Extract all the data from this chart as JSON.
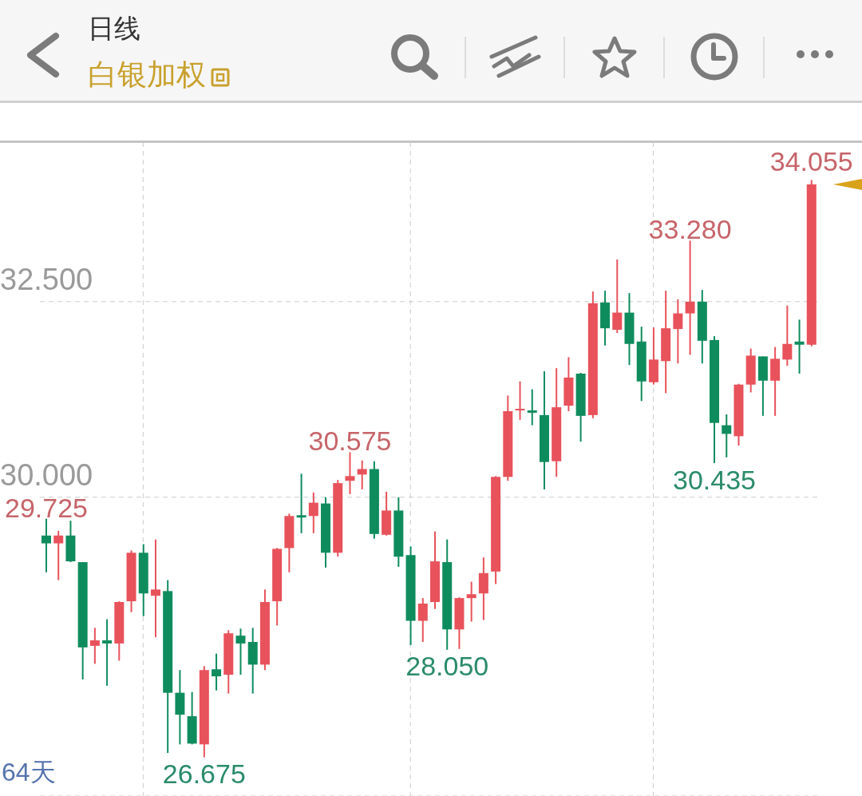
{
  "chart_data": {
    "type": "candlestick",
    "title": "白银加权",
    "subtitle": "日线",
    "categories": [
      null,
      null,
      null,
      null,
      null,
      null,
      null,
      null,
      null,
      null,
      null,
      null,
      null,
      null,
      null,
      null,
      null,
      null,
      null,
      null,
      null,
      null,
      null,
      null,
      null,
      null,
      null,
      null,
      null,
      null,
      null,
      null,
      null,
      null,
      null,
      null,
      null,
      null,
      null,
      null,
      null,
      null,
      null,
      null,
      null,
      null,
      null,
      null,
      null,
      null,
      null,
      null,
      null,
      null,
      null,
      null,
      null,
      null,
      null,
      null,
      null,
      null,
      null,
      null
    ],
    "ohlc": [
      [
        29.51,
        29.725,
        29.04,
        29.41
      ],
      [
        29.41,
        29.57,
        28.94,
        29.51
      ],
      [
        29.51,
        29.7,
        29.17,
        29.18
      ],
      [
        29.17,
        29.17,
        27.67,
        28.08
      ],
      [
        28.1,
        28.33,
        27.87,
        28.17
      ],
      [
        28.17,
        28.44,
        27.59,
        28.13
      ],
      [
        28.13,
        28.67,
        27.91,
        28.66
      ],
      [
        28.67,
        29.32,
        28.53,
        29.29
      ],
      [
        29.29,
        29.4,
        28.48,
        28.77
      ],
      [
        28.74,
        29.46,
        28.21,
        28.82
      ],
      [
        28.8,
        28.94,
        26.73,
        27.5
      ],
      [
        27.5,
        27.79,
        26.84,
        27.22
      ],
      [
        27.2,
        27.51,
        26.84,
        26.85
      ],
      [
        26.84,
        27.84,
        26.675,
        27.79
      ],
      [
        27.8,
        28.0,
        27.53,
        27.71
      ],
      [
        27.73,
        28.3,
        27.49,
        28.26
      ],
      [
        28.23,
        28.32,
        27.73,
        28.13
      ],
      [
        28.15,
        28.33,
        27.49,
        27.86
      ],
      [
        27.86,
        28.82,
        27.79,
        28.66
      ],
      [
        28.67,
        29.35,
        28.36,
        29.34
      ],
      [
        29.35,
        29.79,
        29.04,
        29.76
      ],
      [
        29.77,
        30.3,
        29.54,
        29.74
      ],
      [
        29.76,
        30.06,
        29.54,
        29.93
      ],
      [
        29.92,
        30.0,
        29.1,
        29.29
      ],
      [
        29.29,
        30.22,
        29.24,
        30.18
      ],
      [
        30.21,
        30.575,
        30.04,
        30.27
      ],
      [
        30.29,
        30.47,
        30.1,
        30.36
      ],
      [
        30.36,
        30.46,
        29.47,
        29.53
      ],
      [
        29.52,
        30.07,
        29.51,
        29.83
      ],
      [
        29.83,
        30.0,
        29.11,
        29.24
      ],
      [
        29.26,
        29.37,
        28.11,
        28.42
      ],
      [
        28.42,
        28.71,
        28.15,
        28.64
      ],
      [
        28.66,
        29.56,
        28.57,
        29.18
      ],
      [
        29.17,
        29.46,
        28.05,
        28.31
      ],
      [
        28.31,
        28.72,
        28.06,
        28.71
      ],
      [
        28.71,
        28.92,
        28.41,
        28.76
      ],
      [
        28.77,
        29.23,
        28.43,
        29.03
      ],
      [
        29.05,
        30.27,
        28.89,
        30.26
      ],
      [
        30.26,
        31.3,
        30.21,
        31.1
      ],
      [
        31.11,
        31.48,
        30.99,
        31.13
      ],
      [
        31.11,
        31.38,
        30.92,
        31.08
      ],
      [
        31.05,
        31.61,
        30.1,
        30.45
      ],
      [
        30.46,
        31.65,
        30.26,
        31.15
      ],
      [
        31.17,
        31.79,
        31.1,
        31.53
      ],
      [
        31.58,
        31.59,
        30.71,
        31.04
      ],
      [
        31.05,
        32.63,
        31.01,
        32.48
      ],
      [
        32.49,
        32.64,
        31.94,
        32.16
      ],
      [
        32.14,
        33.04,
        32.1,
        32.36
      ],
      [
        32.36,
        32.61,
        31.69,
        31.96
      ],
      [
        31.99,
        32.18,
        31.23,
        31.48
      ],
      [
        31.47,
        32.17,
        31.44,
        31.76
      ],
      [
        31.74,
        32.64,
        31.33,
        32.16
      ],
      [
        32.15,
        32.53,
        31.71,
        32.35
      ],
      [
        32.35,
        33.28,
        31.82,
        32.5
      ],
      [
        32.5,
        32.65,
        31.71,
        32.0
      ],
      [
        32.01,
        32.06,
        30.435,
        30.95
      ],
      [
        30.92,
        31.06,
        30.51,
        30.81
      ],
      [
        30.78,
        31.45,
        30.66,
        31.44
      ],
      [
        31.44,
        31.9,
        31.34,
        31.81
      ],
      [
        31.8,
        31.8,
        31.04,
        31.49
      ],
      [
        31.49,
        31.92,
        31.04,
        31.77
      ],
      [
        31.76,
        32.45,
        31.68,
        31.96
      ],
      [
        31.99,
        32.27,
        31.58,
        31.95
      ],
      [
        31.95,
        34.055,
        31.93,
        34.0
      ]
    ],
    "colors": [
      "#0f8c5e",
      "#e8525b",
      "#0f8c5e",
      "#0f8c5e",
      "#e8525b",
      "#0f8c5e",
      "#e8525b",
      "#e8525b",
      "#0f8c5e",
      "#e8525b",
      "#0f8c5e",
      "#0f8c5e",
      "#0f8c5e",
      "#e8525b",
      "#0f8c5e",
      "#e8525b",
      "#0f8c5e",
      "#0f8c5e",
      "#e8525b",
      "#e8525b",
      "#e8525b",
      "#0f8c5e",
      "#e8525b",
      "#0f8c5e",
      "#e8525b",
      "#e8525b",
      "#e8525b",
      "#0f8c5e",
      "#e8525b",
      "#0f8c5e",
      "#0f8c5e",
      "#e8525b",
      "#e8525b",
      "#0f8c5e",
      "#e8525b",
      "#e8525b",
      "#e8525b",
      "#e8525b",
      "#e8525b",
      "#e8525b",
      "#0f8c5e",
      "#0f8c5e",
      "#e8525b",
      "#e8525b",
      "#0f8c5e",
      "#e8525b",
      "#0f8c5e",
      "#e8525b",
      "#0f8c5e",
      "#0f8c5e",
      "#e8525b",
      "#e8525b",
      "#e8525b",
      "#e8525b",
      "#0f8c5e",
      "#0f8c5e",
      "#0f8c5e",
      "#e8525b",
      "#e8525b",
      "#0f8c5e",
      "#e8525b",
      "#e8525b",
      "#0f8c5e",
      "#e8525b"
    ],
    "ylim": [
      26.18,
      34.54
    ],
    "yticks": [
      {
        "value": 30,
        "label": "30.000"
      },
      {
        "value": 32.5,
        "label": "32.500"
      }
    ],
    "grid": true,
    "tick_labels": "y",
    "annotations": [
      {
        "text": "34.055",
        "y": 34.055
      },
      {
        "text": "33.280",
        "y": 33.28
      },
      {
        "text": "30.575",
        "y": 30.575
      },
      {
        "text": "29.725",
        "y": 29.725
      },
      {
        "text": "28.050",
        "y": 28.05
      },
      {
        "text": "30.435",
        "y": 30.435
      },
      {
        "text": "26.675",
        "y": 26.675
      },
      "64天"
    ]
  }
}
